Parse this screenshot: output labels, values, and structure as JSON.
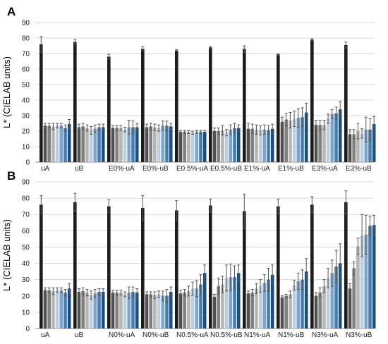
{
  "colors": [
    "#1c1c1c",
    "#505050",
    "#808080",
    "#b4b4b4",
    "#b9cfe4",
    "#7fa4cb",
    "#4a79ad",
    "#1f4e79"
  ],
  "chart_data": [
    {
      "type": "bar",
      "panel_label": "A",
      "ylabel": "L* (CIELAB units)",
      "ylim": [
        0,
        90
      ],
      "yticks": [
        0,
        10,
        20,
        30,
        40,
        50,
        60,
        70,
        80,
        90
      ],
      "grid": true,
      "categories": [
        "uA",
        "uB",
        "E0%-uA",
        "E0%-uB",
        "E0.5%-uA",
        "E0.5%-uB",
        "E1%-uA",
        "E1%-uB",
        "E3%-uA",
        "E3%-uB"
      ],
      "groups": [
        {
          "values": [
            76,
            23.5,
            23.5,
            23,
            23.5,
            23.5,
            22,
            24.5
          ],
          "errors": [
            5,
            1.5,
            1.5,
            2,
            1.5,
            1.5,
            2,
            3
          ]
        },
        {
          "values": [
            77.5,
            22.5,
            23,
            22,
            20.5,
            21.5,
            22.5,
            22.5
          ],
          "errors": [
            1.5,
            2,
            2,
            2,
            2.5,
            2.5,
            2,
            2
          ]
        },
        {
          "values": [
            68,
            22,
            22,
            22,
            21,
            22.5,
            22.5,
            22.5
          ],
          "errors": [
            1.5,
            1.5,
            1.5,
            1.5,
            1.5,
            4.5,
            4,
            2.5
          ]
        },
        {
          "values": [
            73,
            22.5,
            23,
            22.5,
            22,
            23.5,
            23.5,
            23
          ],
          "errors": [
            1.5,
            2,
            2,
            2,
            2,
            3,
            3,
            2
          ]
        },
        {
          "values": [
            72,
            19.5,
            19.5,
            19.5,
            19,
            19.5,
            19.5,
            19.5
          ],
          "errors": [
            0.5,
            1,
            1,
            1,
            1,
            1,
            1,
            1
          ]
        },
        {
          "values": [
            74,
            20,
            20,
            20.5,
            19,
            21,
            22,
            22
          ],
          "errors": [
            0.5,
            2,
            2,
            3,
            2,
            3,
            3,
            2
          ]
        },
        {
          "values": [
            73,
            21.5,
            21.5,
            21,
            20.5,
            21,
            20.5,
            21.5
          ],
          "errors": [
            2,
            3.5,
            3,
            3,
            3,
            3,
            3,
            3
          ]
        },
        {
          "values": [
            69.5,
            26,
            27.5,
            27,
            28,
            28.5,
            29,
            32
          ],
          "errors": [
            0.5,
            3,
            4,
            5,
            5,
            6,
            6,
            6
          ]
        },
        {
          "values": [
            79,
            24,
            24,
            24,
            28,
            31,
            31.5,
            34
          ],
          "errors": [
            0.5,
            3,
            3,
            3,
            3,
            3,
            4,
            5
          ]
        },
        {
          "values": [
            75.5,
            18,
            18,
            20,
            18.5,
            21,
            21,
            24.5
          ],
          "errors": [
            2,
            3,
            3,
            5,
            3,
            8,
            7,
            5
          ]
        }
      ]
    },
    {
      "type": "bar",
      "panel_label": "B",
      "ylabel": "L* (CIELAB units)",
      "ylim": [
        0,
        90
      ],
      "yticks": [
        0,
        10,
        20,
        30,
        40,
        50,
        60,
        70,
        80,
        90
      ],
      "grid": true,
      "categories": [
        "uA",
        "uB",
        "N0%-uA",
        "N0%-uB",
        "N0.5%-uA",
        "N0.5%-uB",
        "N1%-uA",
        "N1%-uB",
        "N3%-uA",
        "N3%-uB"
      ],
      "groups": [
        {
          "values": [
            76,
            23.5,
            23.5,
            23,
            23.5,
            23.5,
            22,
            24.5
          ],
          "errors": [
            5.5,
            1.5,
            1.5,
            2,
            1.5,
            1.5,
            2,
            3
          ]
        },
        {
          "values": [
            77.5,
            22.5,
            23,
            22,
            20.5,
            21.5,
            22.5,
            22.5
          ],
          "errors": [
            5.5,
            2,
            2,
            2,
            2.5,
            2.5,
            2,
            2
          ]
        },
        {
          "values": [
            75,
            22,
            22,
            22,
            21,
            22,
            22.5,
            22
          ],
          "errors": [
            4,
            1.5,
            1.5,
            1.5,
            1.5,
            3.5,
            3,
            2.5
          ]
        },
        {
          "values": [
            74,
            21,
            21,
            20.5,
            21,
            20,
            20,
            22.5
          ],
          "errors": [
            7.5,
            1.5,
            1.5,
            2,
            2,
            3,
            4,
            3
          ]
        },
        {
          "values": [
            72.5,
            21.5,
            22,
            23,
            24.5,
            24.5,
            27,
            34
          ],
          "errors": [
            6,
            2,
            2,
            3,
            4,
            5,
            6,
            5
          ]
        },
        {
          "values": [
            75.5,
            19.5,
            26,
            27,
            31,
            31.5,
            31.5,
            34
          ],
          "errors": [
            4,
            1.5,
            5,
            5,
            8,
            8,
            7,
            5
          ]
        },
        {
          "values": [
            72,
            21.5,
            22,
            24.5,
            26,
            28,
            30,
            33
          ],
          "errors": [
            10.5,
            1.5,
            2,
            3,
            4,
            5,
            7,
            6
          ]
        },
        {
          "values": [
            75,
            19,
            20,
            21,
            26.5,
            29,
            30,
            35
          ],
          "errors": [
            4.5,
            1,
            1,
            2,
            3,
            5,
            6,
            8
          ]
        },
        {
          "values": [
            76,
            20,
            22,
            26,
            31,
            34,
            38,
            40
          ],
          "errors": [
            5,
            2,
            3,
            4,
            6,
            8,
            10,
            12
          ]
        },
        {
          "values": [
            77.5,
            24.5,
            37,
            50.5,
            57,
            57.5,
            63,
            63.5
          ],
          "errors": [
            7,
            3,
            4,
            5,
            13,
            12,
            6,
            6
          ]
        }
      ]
    }
  ]
}
